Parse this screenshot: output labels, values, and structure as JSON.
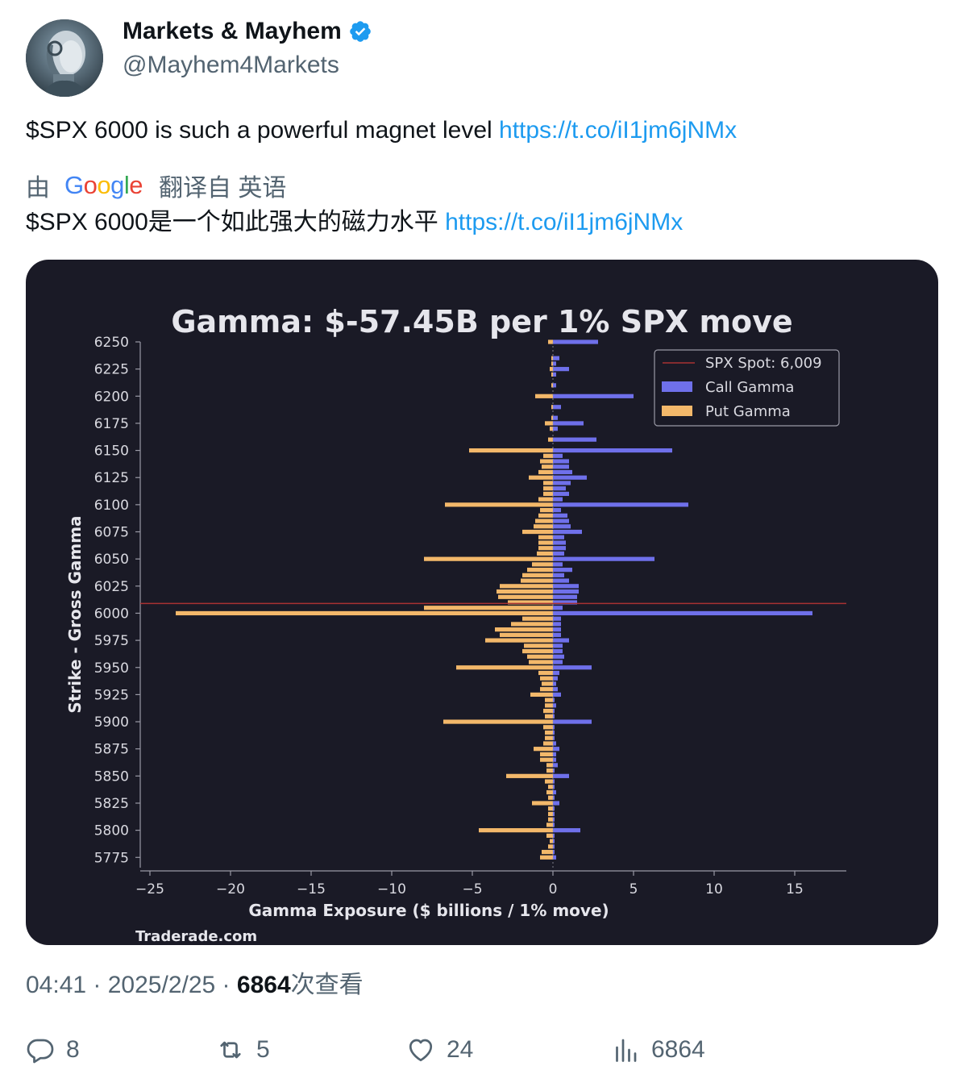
{
  "author": {
    "display_name": "Markets & Mayhem",
    "handle": "@Mayhem4Markets",
    "verified": true,
    "verified_color": "#1d9bf0"
  },
  "tweet": {
    "text": "$SPX 6000 is such a powerful magnet level ",
    "link": "https://t.co/iI1jm6jNMx"
  },
  "translation": {
    "prefix": "由",
    "provider": "Google",
    "suffix": "翻译自 英语",
    "text": "$SPX 6000是一个如此强大的磁力水平 ",
    "link": "https://t.co/iI1jm6jNMx"
  },
  "meta": {
    "time": "04:41",
    "separator": " · ",
    "date": "2025/2/25",
    "views_count": "6864",
    "views_label": "次查看"
  },
  "actions": {
    "replies": "8",
    "reposts": "5",
    "likes": "24",
    "views": "6864"
  },
  "chart_data": {
    "type": "bar",
    "orientation": "horizontal",
    "title": "Gamma: $-57.45B per 1% SPX move",
    "xlabel": "Gamma Exposure ($ billions / 1% move)",
    "ylabel": "Strike - Gross Gamma",
    "watermark": "Traderade.com",
    "xlim": [
      -25.3,
      18.2
    ],
    "ylim": [
      5770,
      6250
    ],
    "xticks": [
      -25,
      -20,
      -15,
      -10,
      -5,
      0,
      5,
      10,
      15
    ],
    "xtick_labels": [
      "−25",
      "−20",
      "−15",
      "−10",
      "−5",
      "0",
      "5",
      "10",
      "15"
    ],
    "yticks": [
      6250,
      6225,
      6200,
      6175,
      6150,
      6125,
      6100,
      6075,
      6050,
      6025,
      6000,
      5975,
      5950,
      5925,
      5900,
      5875,
      5850,
      5825,
      5800,
      5775
    ],
    "spot": 6009,
    "legend_position": "top-right",
    "colors": {
      "background": "#1a1a26",
      "call": "#6f70ea",
      "put": "#f3b86a",
      "spot": "#a83232",
      "text": "#d9d9e0"
    },
    "strikes": [
      6250,
      6235,
      6230,
      6225,
      6220,
      6210,
      6200,
      6190,
      6180,
      6175,
      6170,
      6160,
      6150,
      6145,
      6140,
      6135,
      6130,
      6125,
      6120,
      6115,
      6110,
      6105,
      6100,
      6095,
      6090,
      6085,
      6080,
      6075,
      6070,
      6065,
      6060,
      6055,
      6050,
      6045,
      6040,
      6035,
      6030,
      6025,
      6020,
      6015,
      6010,
      6005,
      6000,
      5995,
      5990,
      5985,
      5980,
      5975,
      5970,
      5965,
      5960,
      5955,
      5950,
      5945,
      5940,
      5935,
      5930,
      5925,
      5920,
      5915,
      5910,
      5905,
      5900,
      5895,
      5890,
      5885,
      5880,
      5875,
      5870,
      5865,
      5860,
      5855,
      5850,
      5845,
      5840,
      5835,
      5830,
      5825,
      5820,
      5815,
      5810,
      5805,
      5800,
      5795,
      5790,
      5785,
      5780,
      5775
    ],
    "series": [
      {
        "name": "SPX Spot: 6,009",
        "kind": "line"
      },
      {
        "name": "Call Gamma",
        "values": [
          2.8,
          0.4,
          0.2,
          1.0,
          0.2,
          0.2,
          5.0,
          0.5,
          0.3,
          1.9,
          0.3,
          2.7,
          7.4,
          0.6,
          1.0,
          1.0,
          1.2,
          2.1,
          1.1,
          0.8,
          1.0,
          0.6,
          8.4,
          0.5,
          0.9,
          1.0,
          1.1,
          1.8,
          0.7,
          0.8,
          0.8,
          0.7,
          6.3,
          0.6,
          1.2,
          0.7,
          1.0,
          1.6,
          1.6,
          1.5,
          1.5,
          0.6,
          16.1,
          0.5,
          0.5,
          0.5,
          0.5,
          1.0,
          0.6,
          0.6,
          0.7,
          0.6,
          2.4,
          0.4,
          0.3,
          0.2,
          0.3,
          0.5,
          0.1,
          0.2,
          0.1,
          0.1,
          2.4,
          0.1,
          0.1,
          0.1,
          0.2,
          0.4,
          0.2,
          0.2,
          0.3,
          0.1,
          1.0,
          0.1,
          0.1,
          0.2,
          0.1,
          0.4,
          0.1,
          0.1,
          0.1,
          0.1,
          1.7,
          0.1,
          0.1,
          0.1,
          0.1,
          0.2
        ]
      },
      {
        "name": "Put Gamma",
        "values": [
          -0.3,
          -0.1,
          -0.1,
          -0.2,
          -0.1,
          -0.1,
          -1.1,
          -0.1,
          -0.1,
          -0.5,
          -0.2,
          -0.3,
          -5.2,
          -0.6,
          -0.8,
          -0.7,
          -0.9,
          -1.5,
          -0.6,
          -0.6,
          -0.6,
          -0.9,
          -6.7,
          -0.8,
          -0.9,
          -1.1,
          -1.2,
          -1.9,
          -0.9,
          -0.9,
          -0.9,
          -1.0,
          -8.0,
          -1.3,
          -1.6,
          -1.9,
          -2.0,
          -3.3,
          -3.5,
          -3.4,
          -2.8,
          -8.0,
          -23.4,
          -1.9,
          -2.6,
          -3.6,
          -3.3,
          -4.2,
          -1.8,
          -1.9,
          -1.6,
          -1.5,
          -6.0,
          -0.9,
          -0.8,
          -0.7,
          -0.8,
          -1.4,
          -0.5,
          -0.5,
          -0.6,
          -0.5,
          -6.8,
          -0.6,
          -0.5,
          -0.5,
          -0.6,
          -1.2,
          -0.8,
          -0.8,
          -0.4,
          -0.4,
          -2.9,
          -0.5,
          -0.3,
          -0.4,
          -0.3,
          -1.3,
          -0.3,
          -0.3,
          -0.3,
          -0.4,
          -4.6,
          -0.4,
          -0.2,
          -0.3,
          -0.7,
          -0.8
        ]
      }
    ]
  }
}
